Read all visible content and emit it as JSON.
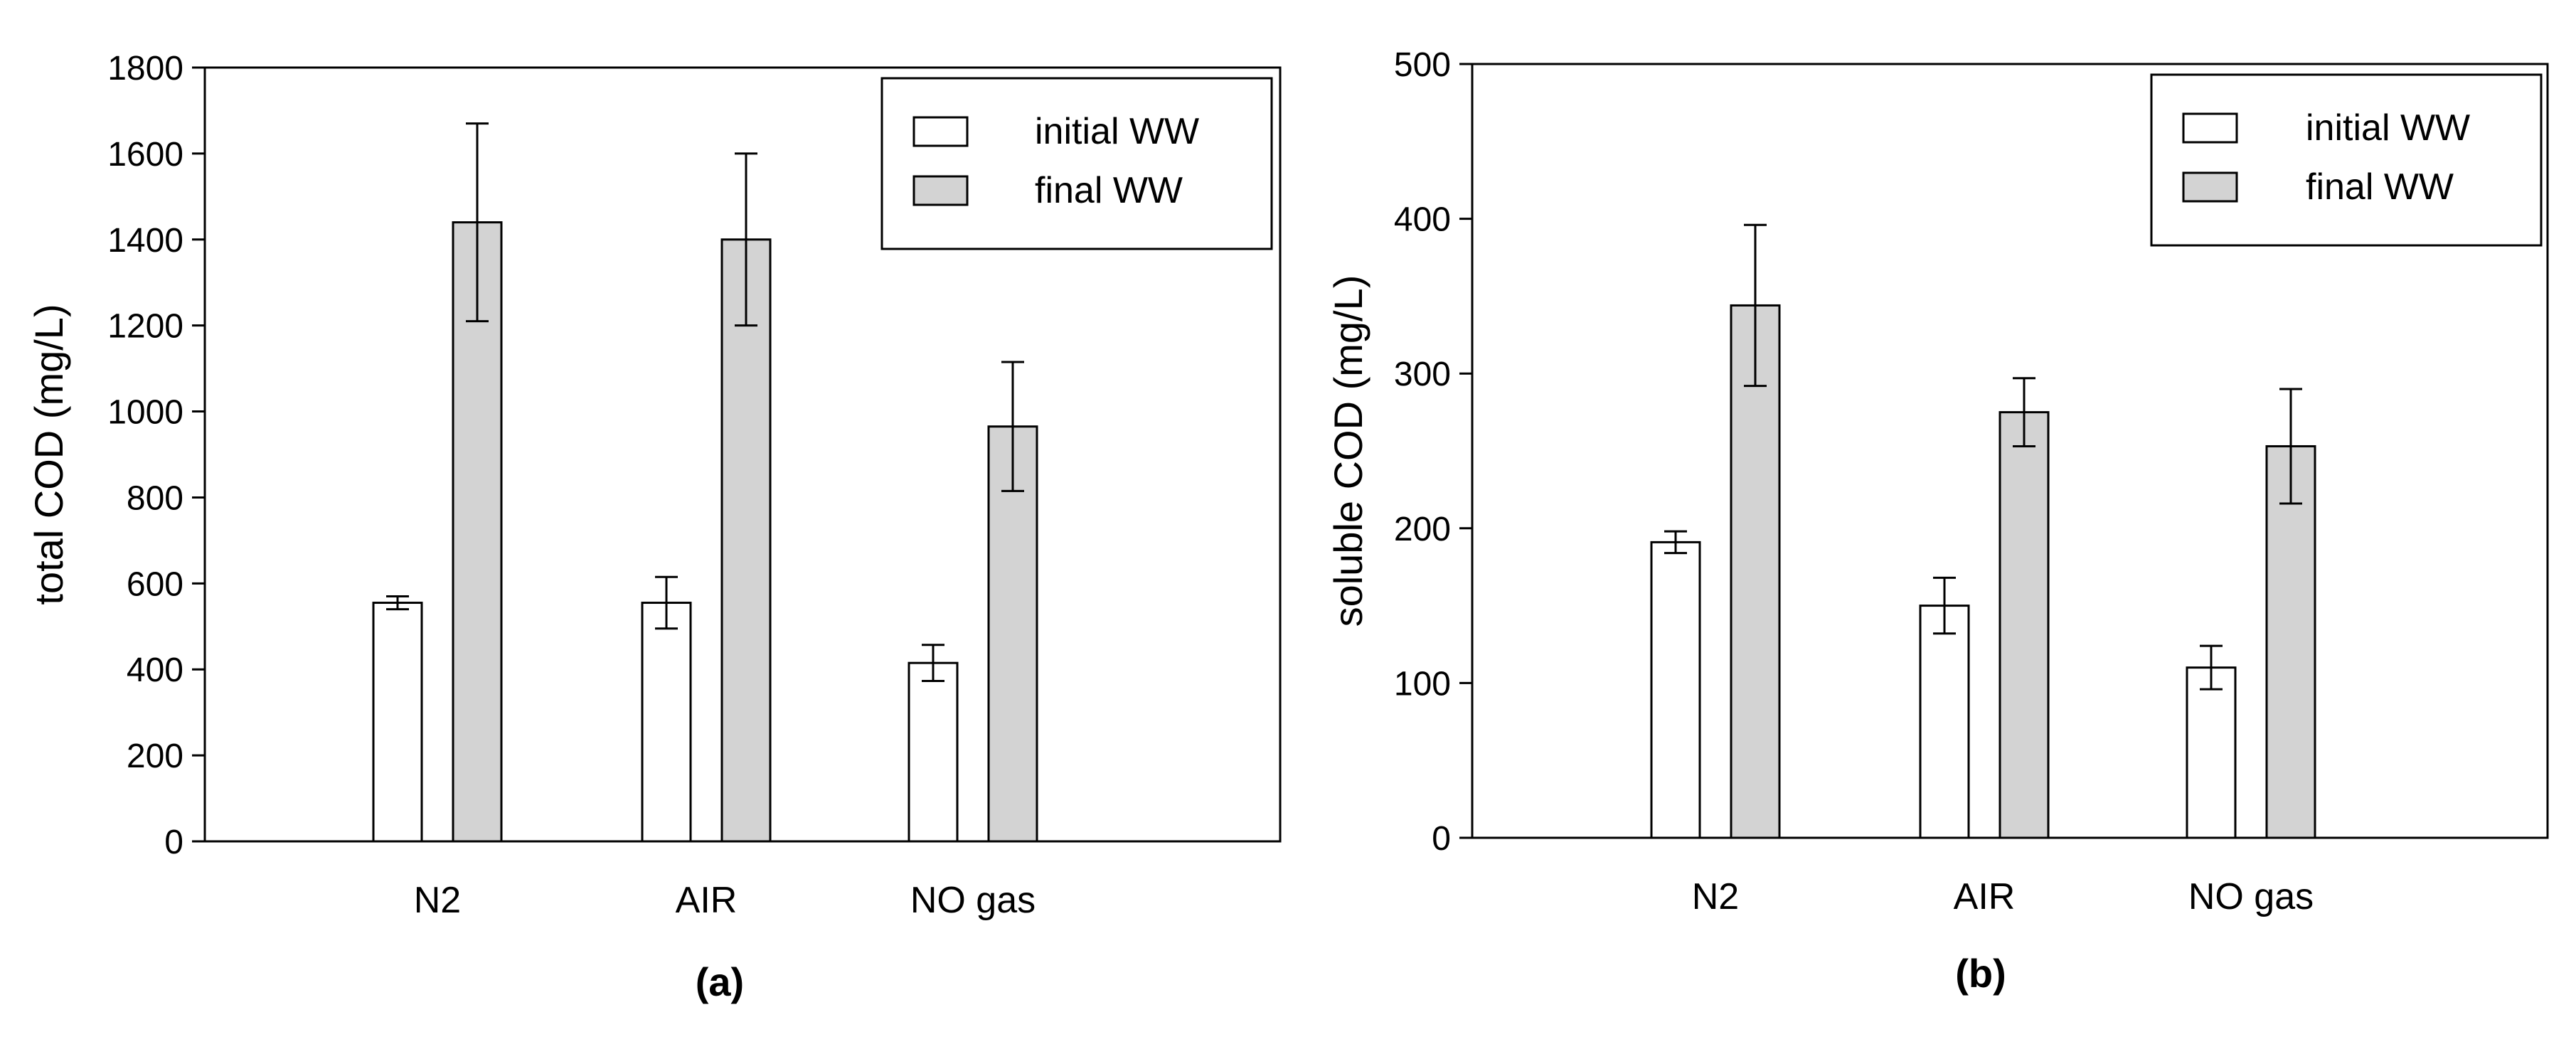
{
  "colors": {
    "initial": "#ffffff",
    "final": "#d3d3d3",
    "stroke": "#000000"
  },
  "chart_data": [
    {
      "type": "bar",
      "panel_label": "(a)",
      "ylabel": "total COD (mg/L)",
      "ylim": [
        0,
        1800
      ],
      "yticks": [
        0,
        200,
        400,
        600,
        800,
        1000,
        1200,
        1400,
        1600,
        1800
      ],
      "categories": [
        "N2",
        "AIR",
        "NO gas"
      ],
      "legend_position": "top-right",
      "series": [
        {
          "name": "initial WW",
          "values": [
            555,
            555,
            415
          ],
          "errors": [
            15,
            60,
            42
          ]
        },
        {
          "name": "final WW",
          "values": [
            1440,
            1400,
            965
          ],
          "errors": [
            230,
            200,
            150
          ]
        }
      ]
    },
    {
      "type": "bar",
      "panel_label": "(b)",
      "ylabel": "soluble COD (mg/L)",
      "ylim": [
        0,
        500
      ],
      "yticks": [
        0,
        100,
        200,
        300,
        400,
        500
      ],
      "categories": [
        "N2",
        "AIR",
        "NO gas"
      ],
      "legend_position": "top-right",
      "series": [
        {
          "name": "initial WW",
          "values": [
            191,
            150,
            110
          ],
          "errors": [
            7,
            18,
            14
          ]
        },
        {
          "name": "final WW",
          "values": [
            344,
            275,
            253
          ],
          "errors": [
            52,
            22,
            37
          ]
        }
      ]
    }
  ]
}
